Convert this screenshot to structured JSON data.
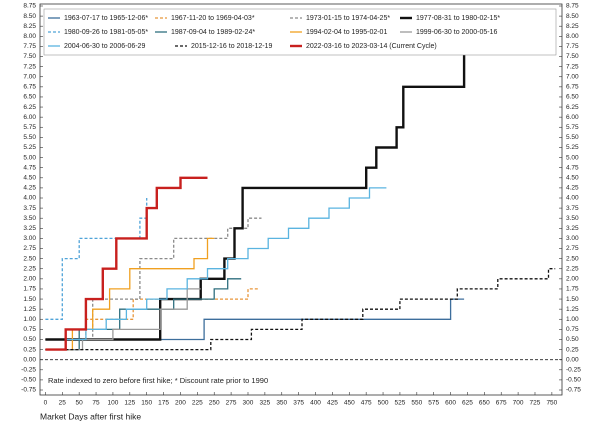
{
  "chart_data": {
    "type": "line",
    "note": "Rate indexed to zero before first hike; * Discount rate prior to 1990",
    "x_label": "Market Days after first hike",
    "xlim": [
      -8,
      765
    ],
    "ylim": [
      -0.75,
      8.75
    ],
    "xticks": [
      0,
      25,
      50,
      75,
      100,
      125,
      150,
      175,
      200,
      225,
      250,
      275,
      300,
      325,
      350,
      375,
      400,
      425,
      450,
      475,
      500,
      525,
      550,
      575,
      600,
      625,
      650,
      675,
      700,
      725,
      750
    ],
    "yticks": [
      -0.75,
      {
        "value": -0.5,
        "label": "-0.50"
      },
      -0.25,
      {
        "value": 0,
        "label": "0.00"
      },
      0.25,
      {
        "value": 0.5,
        "label": "0.50"
      },
      0.75,
      {
        "value": 1,
        "label": "1.00"
      },
      1.25,
      {
        "value": 1.5,
        "label": "1.50"
      },
      1.75,
      {
        "value": 2,
        "label": "2.00"
      },
      2.25,
      {
        "value": 2.5,
        "label": "2.50"
      },
      2.75,
      {
        "value": 3,
        "label": "3.00"
      },
      3.25,
      {
        "value": 3.5,
        "label": "3.50"
      },
      3.75,
      {
        "value": 4,
        "label": "4.00"
      },
      4.25,
      {
        "value": 4.5,
        "label": "4.50"
      },
      4.75,
      {
        "value": 5,
        "label": "5.00"
      },
      5.25,
      {
        "value": 5.5,
        "label": "5.50"
      },
      5.75,
      {
        "value": 6,
        "label": "6.00"
      },
      6.25,
      {
        "value": 6.5,
        "label": "6.50"
      },
      6.75,
      {
        "value": 7,
        "label": "7.00"
      },
      7.25,
      {
        "value": 7.5,
        "label": "7.50"
      },
      7.75,
      {
        "value": 8,
        "label": "8.00"
      },
      8.25,
      {
        "value": 8.5,
        "label": "8.50"
      },
      8.75
    ],
    "zero_line": true,
    "series": [
      {
        "name": "1963-07-17 to 1965-12-06*",
        "color": "#3d6e9c",
        "dashed": false,
        "bold": false,
        "x": [
          0,
          235,
          235,
          600,
          600,
          620
        ],
        "values": [
          0.5,
          0.5,
          1.0,
          1.0,
          1.5,
          1.5
        ]
      },
      {
        "name": "1967-11-20 to 1969-04-03*",
        "color": "#e8963a",
        "dashed": true,
        "bold": false,
        "x": [
          0,
          60,
          60,
          130,
          130,
          300,
          300,
          315
        ],
        "values": [
          0.5,
          0.5,
          1.0,
          1.0,
          1.5,
          1.5,
          1.75,
          1.75
        ]
      },
      {
        "name": "1973-01-15 to 1974-04-25*",
        "color": "#8a8a8a",
        "dashed": true,
        "bold": false,
        "x": [
          0,
          70,
          70,
          140,
          140,
          190,
          190,
          270,
          270,
          300,
          300,
          320
        ],
        "values": [
          0.5,
          0.5,
          1.5,
          1.5,
          2.5,
          2.5,
          3.0,
          3.0,
          3.25,
          3.25,
          3.5,
          3.5
        ]
      },
      {
        "name": "1977-08-31 to 1980-02-15*",
        "color": "#111111",
        "dashed": false,
        "bold": true,
        "x": [
          0,
          170,
          170,
          230,
          230,
          265,
          265,
          280,
          280,
          292,
          292,
          475,
          475,
          490,
          490,
          520,
          520,
          530,
          530,
          620,
          620
        ],
        "values": [
          0.5,
          0.5,
          1.5,
          1.5,
          2.0,
          2.0,
          2.5,
          2.5,
          3.25,
          3.25,
          4.25,
          4.25,
          4.75,
          4.75,
          5.25,
          5.25,
          5.75,
          5.75,
          6.75,
          6.75,
          7.75
        ]
      },
      {
        "name": "1980-09-26 to 1981-05-05*",
        "color": "#4fa3d8",
        "dashed": true,
        "bold": false,
        "x": [
          0,
          25,
          25,
          50,
          50,
          140,
          140,
          150,
          150
        ],
        "values": [
          1.0,
          1.0,
          2.5,
          2.5,
          3.0,
          3.0,
          3.5,
          3.5,
          4.0
        ]
      },
      {
        "name": "1987-09-04 to 1989-02-24*",
        "color": "#2f6f7f",
        "dashed": false,
        "bold": false,
        "x": [
          0,
          50,
          50,
          110,
          110,
          190,
          190,
          250,
          250,
          270,
          270,
          290
        ],
        "values": [
          0.25,
          0.25,
          0.75,
          0.75,
          1.25,
          1.25,
          1.5,
          1.5,
          1.75,
          1.75,
          2.0,
          2.0
        ]
      },
      {
        "name": "1994-02-04 to 1995-02-01",
        "color": "#f0a020",
        "dashed": false,
        "bold": false,
        "x": [
          0,
          40,
          40,
          70,
          70,
          95,
          95,
          125,
          125,
          220,
          220,
          240,
          240,
          250
        ],
        "values": [
          0.25,
          0.25,
          0.75,
          0.75,
          1.25,
          1.25,
          1.75,
          1.75,
          2.25,
          2.25,
          2.5,
          2.5,
          3.0,
          3.0
        ]
      },
      {
        "name": "1999-06-30 to 2000-05-16",
        "color": "#9a9a9a",
        "dashed": false,
        "bold": false,
        "x": [
          0,
          55,
          55,
          100,
          100,
          170,
          170,
          210,
          210,
          230
        ],
        "values": [
          0.25,
          0.25,
          0.5,
          0.5,
          0.75,
          0.75,
          1.25,
          1.25,
          1.75,
          1.75
        ]
      },
      {
        "name": "2004-06-30 to 2006-06-29",
        "color": "#5ab4e0",
        "dashed": false,
        "bold": false,
        "x": [
          0,
          30,
          30,
          60,
          60,
          90,
          90,
          120,
          120,
          150,
          150,
          180,
          180,
          210,
          210,
          240,
          240,
          270,
          270,
          300,
          300,
          330,
          330,
          360,
          360,
          390,
          390,
          420,
          420,
          450,
          450,
          480,
          480,
          505
        ],
        "values": [
          0.25,
          0.25,
          0.5,
          0.5,
          0.75,
          0.75,
          1.0,
          1.0,
          1.25,
          1.25,
          1.5,
          1.5,
          1.75,
          1.75,
          2.0,
          2.0,
          2.25,
          2.25,
          2.5,
          2.5,
          2.75,
          2.75,
          3.0,
          3.0,
          3.25,
          3.25,
          3.5,
          3.5,
          3.75,
          3.75,
          4.0,
          4.0,
          4.25,
          4.25
        ]
      },
      {
        "name": "2015-12-16 to 2018-12-19",
        "color": "#111111",
        "dashed": true,
        "bold": false,
        "x": [
          0,
          245,
          245,
          305,
          305,
          380,
          380,
          470,
          470,
          525,
          525,
          610,
          610,
          670,
          670,
          745,
          745,
          755
        ],
        "values": [
          0.25,
          0.25,
          0.5,
          0.5,
          0.75,
          0.75,
          1.0,
          1.0,
          1.25,
          1.25,
          1.5,
          1.5,
          1.75,
          1.75,
          2.0,
          2.0,
          2.25,
          2.25
        ]
      },
      {
        "name": "2022-03-16 to 2023-03-14 (Current Cycle)",
        "color": "#c8201e",
        "dashed": false,
        "bold": true,
        "x": [
          0,
          30,
          30,
          60,
          60,
          85,
          85,
          105,
          105,
          150,
          150,
          165,
          165,
          200,
          200,
          240
        ],
        "values": [
          0.25,
          0.25,
          0.75,
          0.75,
          1.5,
          1.5,
          2.25,
          2.25,
          3.0,
          3.0,
          3.75,
          3.75,
          4.25,
          4.25,
          4.5,
          4.5
        ]
      }
    ]
  }
}
